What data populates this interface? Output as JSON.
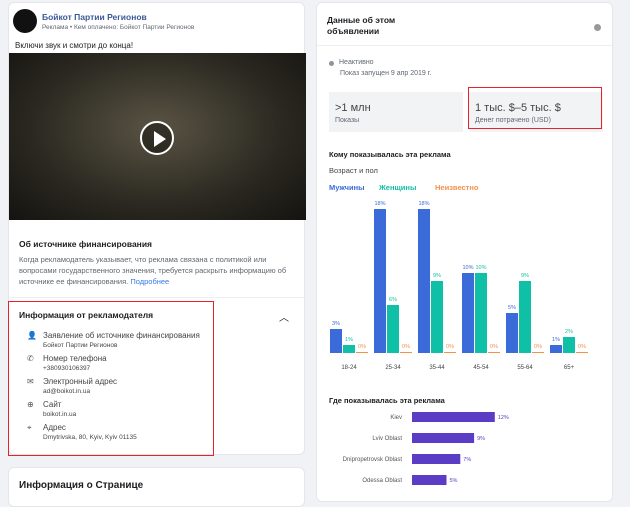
{
  "ad": {
    "page_name": "Бойкот Партии Регионов",
    "meta": "Реклама • Кем оплачено: Бойкот Партии Регионов",
    "text": "Включи звук и смотри до конца!"
  },
  "funding": {
    "title": "Об источнике финансирования",
    "body": "Когда рекламодатель указывает, что реклама связана с политикой или вопросами государственного значения, требуется раскрыть информацию об источнике ее финансирования.",
    "link": "Подробнее"
  },
  "advertiser": {
    "title": "Информация от рекламодателя",
    "items": [
      {
        "icon": "person-icon",
        "label": "Заявление об источнике финансирования",
        "value": "Бойкот Партии Регионов"
      },
      {
        "icon": "phone-icon",
        "label": "Номер телефона",
        "value": "+380930106397"
      },
      {
        "icon": "email-icon",
        "label": "Электронный адрес",
        "value": "ad@boikot.in.ua"
      },
      {
        "icon": "globe-icon",
        "label": "Сайт",
        "value": "boikot.in.ua"
      },
      {
        "icon": "location-icon",
        "label": "Адрес",
        "value": "Dmytrivska, 80, Kyiv, Kyiv 01135"
      }
    ]
  },
  "page_info": {
    "title": "Информация о Странице"
  },
  "details": {
    "title_line1": "Данные об этом",
    "title_line2": "объявлении",
    "status": "Неактивно",
    "started": "Показ запущен 9 апр 2019 г.",
    "impressions_value": ">1 млн",
    "impressions_label": "Показы",
    "spent_value": "1 тыс. $–5 тыс. $",
    "spent_label": "Денег потрачено (USD)",
    "audience_title": "Кому показывалась эта реклама",
    "age_gender_title": "Возраст и пол",
    "geo_title": "Где показывалась эта реклама"
  },
  "colors": {
    "men": "#3b6bd9",
    "women": "#0fbfa6",
    "unknown": "#f5904a",
    "geo": "#5b3cc4",
    "highlight": "#e6232b"
  },
  "chart_data": [
    {
      "type": "bar",
      "categories": [
        "18-24",
        "25-34",
        "35-44",
        "45-54",
        "55-64",
        "65+"
      ],
      "series": [
        {
          "name": "Мужчины",
          "values": [
            3,
            18,
            18,
            10,
            5,
            1
          ]
        },
        {
          "name": "Женщины",
          "values": [
            1,
            6,
            9,
            10,
            9,
            2
          ]
        },
        {
          "name": "Неизвестно",
          "values": [
            0,
            0,
            0,
            0,
            0,
            0
          ]
        }
      ],
      "unit": "%",
      "legend": "top-left"
    },
    {
      "type": "bar",
      "orientation": "horizontal",
      "categories": [
        "Kiev",
        "Lviv Oblast",
        "Dnipropetrovsk Oblast",
        "Odessa Oblast"
      ],
      "values": [
        12,
        9,
        7,
        5
      ],
      "unit": "%"
    }
  ]
}
